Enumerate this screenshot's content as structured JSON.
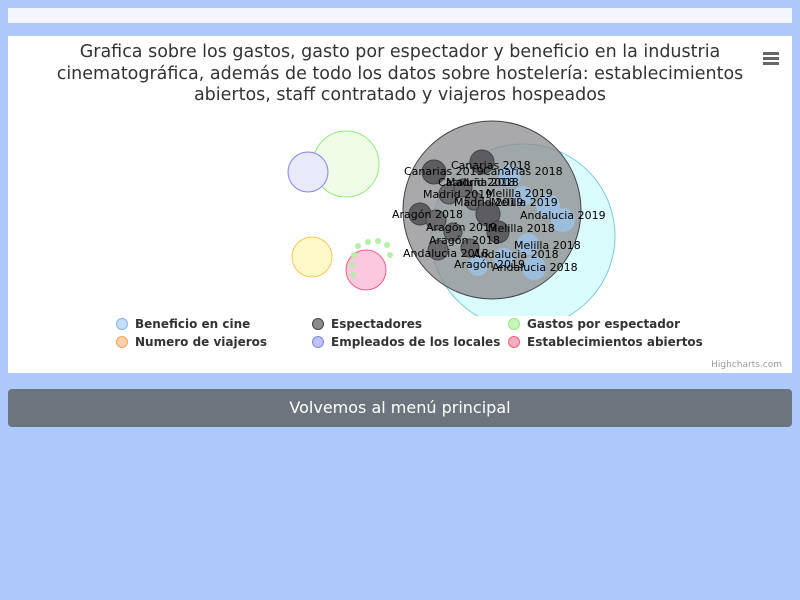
{
  "page": {
    "back_button": "Volvemos al menú principal"
  },
  "chart_data": {
    "type": "packedbubble",
    "title": "Grafica sobre los gastos, gasto por espectador y beneficio en la industria cinematográfica, además de todo los datos sobre hostelería: establecimientos abiertos, staff contratado y viajeros hospeados",
    "title_lines": [
      "Grafica sobre los gastos, gasto por espectador y beneficio en la industria",
      "cinematográfica, además de todo los datos sobre hostelería: establecimientos",
      "abiertos, staff contratado y viajeros hospeados"
    ],
    "credits": "Highcharts.com",
    "legend_position": "bottom",
    "series": [
      {
        "name": "Beneficio en cine",
        "color": "#7cb5ec"
      },
      {
        "name": "Espectadores",
        "color": "#434348"
      },
      {
        "name": "Gastos por espectador",
        "color": "#90ed7d"
      },
      {
        "name": "Numero de viajeros",
        "color": "#f7a35c"
      },
      {
        "name": "Empleados de los locales",
        "color": "#8085e9"
      },
      {
        "name": "Establecimientos abiertos",
        "color": "#f15c80"
      }
    ],
    "point_labels": [
      "Canarias 2019",
      "Canarias 2018",
      "Canarias 2018",
      "Cataluña 2018",
      "Madrid 2018",
      "Madrid 2019",
      "Melilla 2019",
      "Madrid 2019",
      "Melilla 2019",
      "Andalucia 2019",
      "Aragón 2018",
      "Aragón 2019",
      "Melilla 2018",
      "Aragón 2018",
      "Melilla 2018",
      "Andalucia 2018",
      "Andalucia 2018",
      "Aragón 2019",
      "Andalucia 2018"
    ]
  }
}
